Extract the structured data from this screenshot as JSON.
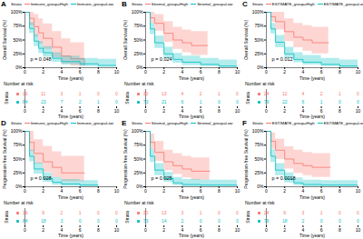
{
  "chart_data": [
    {
      "type": "step",
      "panel": "A",
      "legend_title": "Strata",
      "ylabel": "Overall Survival (%)",
      "xlabel": "Time (years)",
      "annotation": "p = 0.048",
      "grid": false,
      "xlim": [
        0,
        10
      ],
      "xticks": [
        0,
        2,
        4,
        6,
        8,
        10
      ],
      "ylim": [
        0,
        100
      ],
      "yticks": [
        {
          "value": 0,
          "label": "0%"
        },
        {
          "value": 25,
          "label": "25%"
        },
        {
          "value": 50,
          "label": "50%"
        },
        {
          "value": 75,
          "label": "75%"
        },
        {
          "value": 100,
          "label": "100%"
        }
      ],
      "series": [
        {
          "name": "Immune_group=High",
          "color": "#F8766D",
          "x": [
            0,
            0.5,
            1,
            1.5,
            2,
            3,
            4,
            5,
            6.5
          ],
          "values": [
            100,
            89,
            74,
            63,
            53,
            37,
            21,
            16,
            5
          ],
          "lower": [
            100,
            76,
            55,
            43,
            33,
            18,
            7,
            3,
            0
          ],
          "upper": [
            100,
            100,
            96,
            88,
            79,
            65,
            52,
            45,
            40
          ]
        },
        {
          "name": "Immune_group=Low",
          "color": "#00BFC4",
          "x": [
            0,
            0.5,
            1,
            1.5,
            2,
            3,
            4,
            6,
            8,
            10
          ],
          "values": [
            100,
            71,
            48,
            35,
            27,
            17,
            11,
            7,
            4,
            4
          ],
          "lower": [
            100,
            62,
            38,
            26,
            19,
            10,
            5,
            2,
            1,
            1
          ],
          "upper": [
            100,
            81,
            60,
            47,
            38,
            27,
            21,
            17,
            15,
            15
          ]
        }
      ],
      "risk_table": {
        "title": "Number at risk",
        "ylabel": "Strata",
        "x": [
          0,
          2,
          4,
          6,
          8,
          10
        ],
        "rows": [
          {
            "name": "Immune_group=High",
            "color": "#F8766D",
            "values": [
              19,
              11,
              3,
              1,
              0,
              0
            ]
          },
          {
            "name": "Immune_group=Low",
            "color": "#00BFC4",
            "values": [
              84,
              23,
              7,
              2,
              1,
              0
            ]
          }
        ]
      }
    },
    {
      "type": "step",
      "panel": "B",
      "legend_title": "Strata",
      "ylabel": "Overall Survival (%)",
      "xlabel": "Time (years)",
      "annotation": "p = 0.024",
      "grid": false,
      "xlim": [
        0,
        10
      ],
      "xticks": [
        0,
        2,
        4,
        6,
        8,
        10
      ],
      "ylim": [
        0,
        100
      ],
      "yticks": [
        {
          "value": 0,
          "label": "0%"
        },
        {
          "value": 25,
          "label": "25%"
        },
        {
          "value": 50,
          "label": "50%"
        },
        {
          "value": 75,
          "label": "75%"
        },
        {
          "value": 100,
          "label": "100%"
        }
      ],
      "series": [
        {
          "name": "Stromal_group=High",
          "color": "#F8766D",
          "x": [
            0,
            0.5,
            1,
            2,
            3,
            4,
            5,
            6.8
          ],
          "values": [
            100,
            90,
            80,
            62,
            50,
            45,
            40,
            40
          ],
          "lower": [
            100,
            80,
            66,
            46,
            33,
            27,
            22,
            22
          ],
          "upper": [
            100,
            100,
            96,
            83,
            73,
            68,
            65,
            65
          ]
        },
        {
          "name": "Stromal_group=Low",
          "color": "#00BFC4",
          "x": [
            0,
            0.5,
            1,
            2,
            3,
            4,
            6,
            8,
            10
          ],
          "values": [
            100,
            70,
            45,
            25,
            15,
            10,
            6,
            3,
            3
          ],
          "lower": [
            100,
            60,
            35,
            16,
            8,
            4,
            2,
            0,
            0
          ],
          "upper": [
            100,
            80,
            57,
            37,
            26,
            21,
            17,
            14,
            14
          ]
        }
      ],
      "risk_table": {
        "title": "Number at risk",
        "ylabel": "Strata",
        "x": [
          0,
          2,
          4,
          6,
          8,
          10
        ],
        "rows": [
          {
            "name": "Stromal_group=High",
            "color": "#F8766D",
            "values": [
              30,
              13,
              4,
              2,
              1,
              0
            ]
          },
          {
            "name": "Stromal_group=Low",
            "color": "#00BFC4",
            "values": [
              73,
              21,
              6,
              1,
              0,
              0
            ]
          }
        ]
      }
    },
    {
      "type": "step",
      "panel": "C",
      "legend_title": "Strata",
      "ylabel": "Overall Survival (%)",
      "xlabel": "Time (years)",
      "annotation": "p = 0.012",
      "grid": false,
      "xlim": [
        0,
        10
      ],
      "xticks": [
        0,
        2,
        4,
        6,
        8,
        10
      ],
      "ylim": [
        0,
        100
      ],
      "yticks": [
        {
          "value": 0,
          "label": "0%"
        },
        {
          "value": 25,
          "label": "25%"
        },
        {
          "value": 50,
          "label": "50%"
        },
        {
          "value": 75,
          "label": "75%"
        },
        {
          "value": 100,
          "label": "100%"
        }
      ],
      "series": [
        {
          "name": "ESTIMATE_group=High",
          "color": "#F8766D",
          "x": [
            0,
            0.5,
            1,
            2,
            3,
            4,
            5,
            6.8
          ],
          "values": [
            100,
            92,
            83,
            65,
            55,
            50,
            45,
            45
          ],
          "lower": [
            100,
            82,
            68,
            47,
            36,
            30,
            25,
            25
          ],
          "upper": [
            100,
            100,
            100,
            88,
            80,
            76,
            73,
            73
          ]
        },
        {
          "name": "ESTIMATE_group=Low",
          "color": "#00BFC4",
          "x": [
            0,
            0.5,
            1,
            2,
            3,
            4,
            6,
            8,
            10
          ],
          "values": [
            100,
            70,
            46,
            25,
            15,
            10,
            6,
            3,
            3
          ],
          "lower": [
            100,
            61,
            36,
            17,
            9,
            5,
            2,
            0,
            0
          ],
          "upper": [
            100,
            80,
            58,
            37,
            27,
            22,
            17,
            14,
            14
          ]
        }
      ],
      "risk_table": {
        "title": "Number at risk",
        "ylabel": "Strata",
        "x": [
          0,
          2,
          4,
          6,
          8,
          10
        ],
        "rows": [
          {
            "name": "ESTIMATE_group=High",
            "color": "#F8766D",
            "values": [
              24,
              12,
              4,
              2,
              1,
              0
            ]
          },
          {
            "name": "ESTIMATE_group=Low",
            "color": "#00BFC4",
            "values": [
              79,
              22,
              6,
              1,
              0,
              0
            ]
          }
        ]
      }
    },
    {
      "type": "step",
      "panel": "D",
      "legend_title": "Strata",
      "ylabel": "Progression-free Survival (%)",
      "xlabel": "Time (years)",
      "annotation": "p = 0.028",
      "grid": false,
      "xlim": [
        0,
        10
      ],
      "xticks": [
        0,
        2,
        4,
        6,
        8,
        10
      ],
      "ylim": [
        0,
        100
      ],
      "yticks": [
        {
          "value": 0,
          "label": "0%"
        },
        {
          "value": 25,
          "label": "25%"
        },
        {
          "value": 50,
          "label": "50%"
        },
        {
          "value": 75,
          "label": "75%"
        },
        {
          "value": 100,
          "label": "100%"
        }
      ],
      "series": [
        {
          "name": "Immune_group=High",
          "color": "#F8766D",
          "x": [
            0,
            0.5,
            1,
            2,
            3,
            4,
            6.5
          ],
          "values": [
            100,
            80,
            60,
            45,
            35,
            25,
            25
          ],
          "lower": [
            100,
            64,
            41,
            26,
            17,
            9,
            9
          ],
          "upper": [
            100,
            100,
            85,
            73,
            63,
            55,
            55
          ]
        },
        {
          "name": "Immune_group=Low",
          "color": "#00BFC4",
          "x": [
            0,
            0.5,
            1,
            2,
            3,
            4,
            6,
            8
          ],
          "values": [
            100,
            55,
            32,
            15,
            8,
            5,
            3,
            3
          ],
          "lower": [
            100,
            45,
            23,
            8,
            3,
            1,
            0,
            0
          ],
          "upper": [
            100,
            66,
            43,
            25,
            17,
            13,
            11,
            11
          ]
        }
      ],
      "risk_table": {
        "title": "Number at risk",
        "ylabel": "Strata",
        "x": [
          0,
          2,
          4,
          6,
          8,
          10
        ],
        "rows": [
          {
            "name": "Immune_group=High",
            "color": "#F8766D",
            "values": [
              19,
              9,
              2,
              1,
              0,
              0
            ]
          },
          {
            "name": "Immune_group=Low",
            "color": "#00BFC4",
            "values": [
              84,
              18,
              3,
              0,
              0,
              0
            ]
          }
        ]
      }
    },
    {
      "type": "step",
      "panel": "E",
      "legend_title": "Strata",
      "ylabel": "Progression-free Survival (%)",
      "xlabel": "Time (years)",
      "annotation": "p = 0.025",
      "grid": false,
      "xlim": [
        0,
        10
      ],
      "xticks": [
        0,
        2,
        4,
        6,
        8,
        10
      ],
      "ylim": [
        0,
        100
      ],
      "yticks": [
        {
          "value": 0,
          "label": "0%"
        },
        {
          "value": 25,
          "label": "25%"
        },
        {
          "value": 50,
          "label": "50%"
        },
        {
          "value": 75,
          "label": "75%"
        },
        {
          "value": 100,
          "label": "100%"
        }
      ],
      "series": [
        {
          "name": "Stromal_group=High",
          "color": "#F8766D",
          "x": [
            0,
            0.5,
            1,
            2,
            3,
            4,
            5,
            7
          ],
          "values": [
            100,
            80,
            62,
            45,
            38,
            32,
            28,
            28
          ],
          "lower": [
            100,
            67,
            46,
            29,
            22,
            16,
            12,
            12
          ],
          "upper": [
            100,
            95,
            82,
            66,
            60,
            55,
            52,
            52
          ]
        },
        {
          "name": "Stromal_group=Low",
          "color": "#00BFC4",
          "x": [
            0,
            0.5,
            1,
            2,
            3,
            4,
            6,
            10
          ],
          "values": [
            100,
            55,
            30,
            15,
            7,
            4,
            3,
            3
          ],
          "lower": [
            100,
            44,
            20,
            8,
            2,
            0,
            0,
            0
          ],
          "upper": [
            100,
            67,
            42,
            26,
            17,
            13,
            12,
            12
          ]
        }
      ],
      "risk_table": {
        "title": "Number at risk",
        "ylabel": "Strata",
        "x": [
          0,
          2,
          4,
          6,
          8,
          10
        ],
        "rows": [
          {
            "name": "Stromal_group=High",
            "color": "#F8766D",
            "values": [
              30,
              13,
              3,
              1,
              0,
              0
            ]
          },
          {
            "name": "Stromal_group=Low",
            "color": "#00BFC4",
            "values": [
              73,
              14,
              2,
              0,
              0,
              0
            ]
          }
        ]
      }
    },
    {
      "type": "step",
      "panel": "F",
      "legend_title": "Strata",
      "ylabel": "Progression-free Survival (%)",
      "xlabel": "Time (years)",
      "annotation": "p = 0.0018",
      "grid": false,
      "xlim": [
        0,
        10
      ],
      "xticks": [
        0,
        2,
        4,
        6,
        8,
        10
      ],
      "ylim": [
        0,
        100
      ],
      "yticks": [
        {
          "value": 0,
          "label": "0%"
        },
        {
          "value": 25,
          "label": "25%"
        },
        {
          "value": 50,
          "label": "50%"
        },
        {
          "value": 75,
          "label": "75%"
        },
        {
          "value": 100,
          "label": "100%"
        }
      ],
      "series": [
        {
          "name": "ESTIMATE_group=High",
          "color": "#F8766D",
          "x": [
            0,
            0.5,
            1,
            2,
            3,
            4,
            5,
            7
          ],
          "values": [
            100,
            82,
            66,
            50,
            42,
            38,
            35,
            35
          ],
          "lower": [
            100,
            68,
            49,
            32,
            24,
            20,
            17,
            17
          ],
          "upper": [
            100,
            97,
            86,
            72,
            66,
            62,
            60,
            60
          ]
        },
        {
          "name": "ESTIMATE_group=Low",
          "color": "#00BFC4",
          "x": [
            0,
            0.5,
            1,
            2,
            3,
            4,
            6,
            10
          ],
          "values": [
            100,
            55,
            30,
            14,
            7,
            4,
            3,
            3
          ],
          "lower": [
            100,
            44,
            20,
            7,
            2,
            0,
            0,
            0
          ],
          "upper": [
            100,
            67,
            42,
            25,
            16,
            12,
            11,
            11
          ]
        }
      ],
      "risk_table": {
        "title": "Number at risk",
        "ylabel": "Strata",
        "x": [
          0,
          2,
          4,
          6,
          8,
          10
        ],
        "rows": [
          {
            "name": "ESTIMATE_group=High",
            "color": "#F8766D",
            "values": [
              24,
              9,
              3,
              1,
              0,
              0
            ]
          },
          {
            "name": "ESTIMATE_group=Low",
            "color": "#00BFC4",
            "values": [
              79,
              18,
              2,
              0,
              0,
              0
            ]
          }
        ]
      }
    }
  ]
}
